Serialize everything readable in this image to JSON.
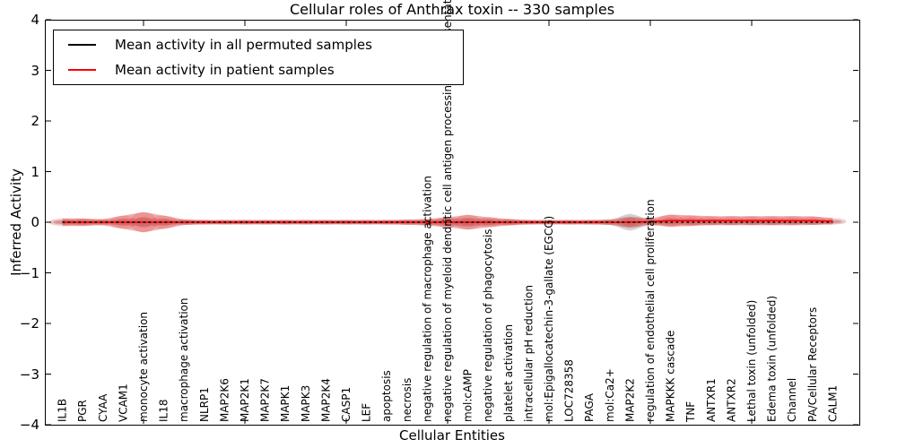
{
  "chart_data": {
    "type": "violin",
    "title": "Cellular roles of Anthrax toxin -- 330 samples",
    "xlabel": "Cellular Entities",
    "ylabel": "Inferred Activity",
    "ylim": [
      -4,
      4
    ],
    "yticks": [
      4,
      3,
      2,
      1,
      0,
      -1,
      -2,
      -3,
      -4
    ],
    "grid": false,
    "legend_position": "upper left",
    "categories": [
      "IL1B",
      "PGR",
      "CYAA",
      "VCAM1",
      "monocyte activation",
      "IL18",
      "macrophage activation",
      "NLRP1",
      "MAP2K6",
      "MAP2K1",
      "MAP2K7",
      "MAPK1",
      "MAPK3",
      "MAP2K4",
      "CASP1",
      "LEF",
      "apoptosis",
      "necrosis",
      "negative regulation of macrophage activation",
      "negative regulation of myeloid dendritic cell antigen processing and presentation",
      "mol:cAMP",
      "negative regulation of phagocytosis",
      "platelet activation",
      "intracellular pH reduction",
      "mol:Epigallocatechin-3-gallate (EGCG)",
      "LOC728358",
      "PAGA",
      "mol:Ca2+",
      "MAP2K2",
      "regulation of endothelial cell proliferation",
      "MAPKKK cascade",
      "TNF",
      "ANTXR1",
      "ANTXR2",
      "Lethal toxin (unfolded)",
      "Edema toxin (unfolded)",
      "Channel",
      "PA/Cellular Receptors",
      "CALM1"
    ],
    "xtick_indices": [
      4,
      9,
      14,
      19,
      24,
      29,
      34
    ],
    "series": [
      {
        "name": "Mean activity in all permuted samples",
        "line_color": "#000000",
        "fill_color": "#999999",
        "line_style": "dashed",
        "mean": [
          0,
          0,
          0,
          0,
          0,
          0,
          0,
          0,
          0,
          0,
          0,
          0,
          0,
          0,
          0,
          0,
          0,
          0,
          0,
          0,
          0,
          0,
          0,
          0,
          0,
          0,
          0,
          0,
          0,
          0,
          0,
          0,
          0,
          0,
          0,
          0,
          0,
          0,
          0
        ],
        "spread_half_width": [
          0.05,
          0.05,
          0.045,
          0.06,
          0.085,
          0.06,
          0.045,
          0.04,
          0.04,
          0.04,
          0.04,
          0.04,
          0.04,
          0.04,
          0.04,
          0.04,
          0.04,
          0.045,
          0.05,
          0.07,
          0.085,
          0.06,
          0.05,
          0.04,
          0.04,
          0.04,
          0.04,
          0.05,
          0.165,
          0.05,
          0.06,
          0.055,
          0.05,
          0.05,
          0.05,
          0.05,
          0.045,
          0.045,
          0.04
        ]
      },
      {
        "name": "Mean activity in patient samples",
        "line_color": "#ff0000",
        "fill_color": "#dd3333",
        "line_style": "solid",
        "mean": [
          0,
          0,
          0,
          0,
          0,
          0,
          0,
          0,
          0,
          0,
          0,
          0,
          0,
          0,
          0,
          0,
          0,
          0,
          0,
          0,
          0,
          0,
          0,
          0,
          0,
          0,
          0,
          0,
          0,
          0.01,
          0.03,
          0.03,
          0.03,
          0.03,
          0.03,
          0.03,
          0.03,
          0.03,
          0.02
        ],
        "spread_half_width": [
          0.075,
          0.075,
          0.06,
          0.13,
          0.2,
          0.13,
          0.055,
          0.045,
          0.045,
          0.045,
          0.045,
          0.045,
          0.045,
          0.045,
          0.045,
          0.045,
          0.045,
          0.05,
          0.065,
          0.1,
          0.145,
          0.1,
          0.065,
          0.045,
          0.045,
          0.045,
          0.045,
          0.05,
          0.105,
          0.065,
          0.12,
          0.105,
          0.09,
          0.09,
          0.09,
          0.09,
          0.09,
          0.085,
          0.065
        ]
      }
    ]
  }
}
